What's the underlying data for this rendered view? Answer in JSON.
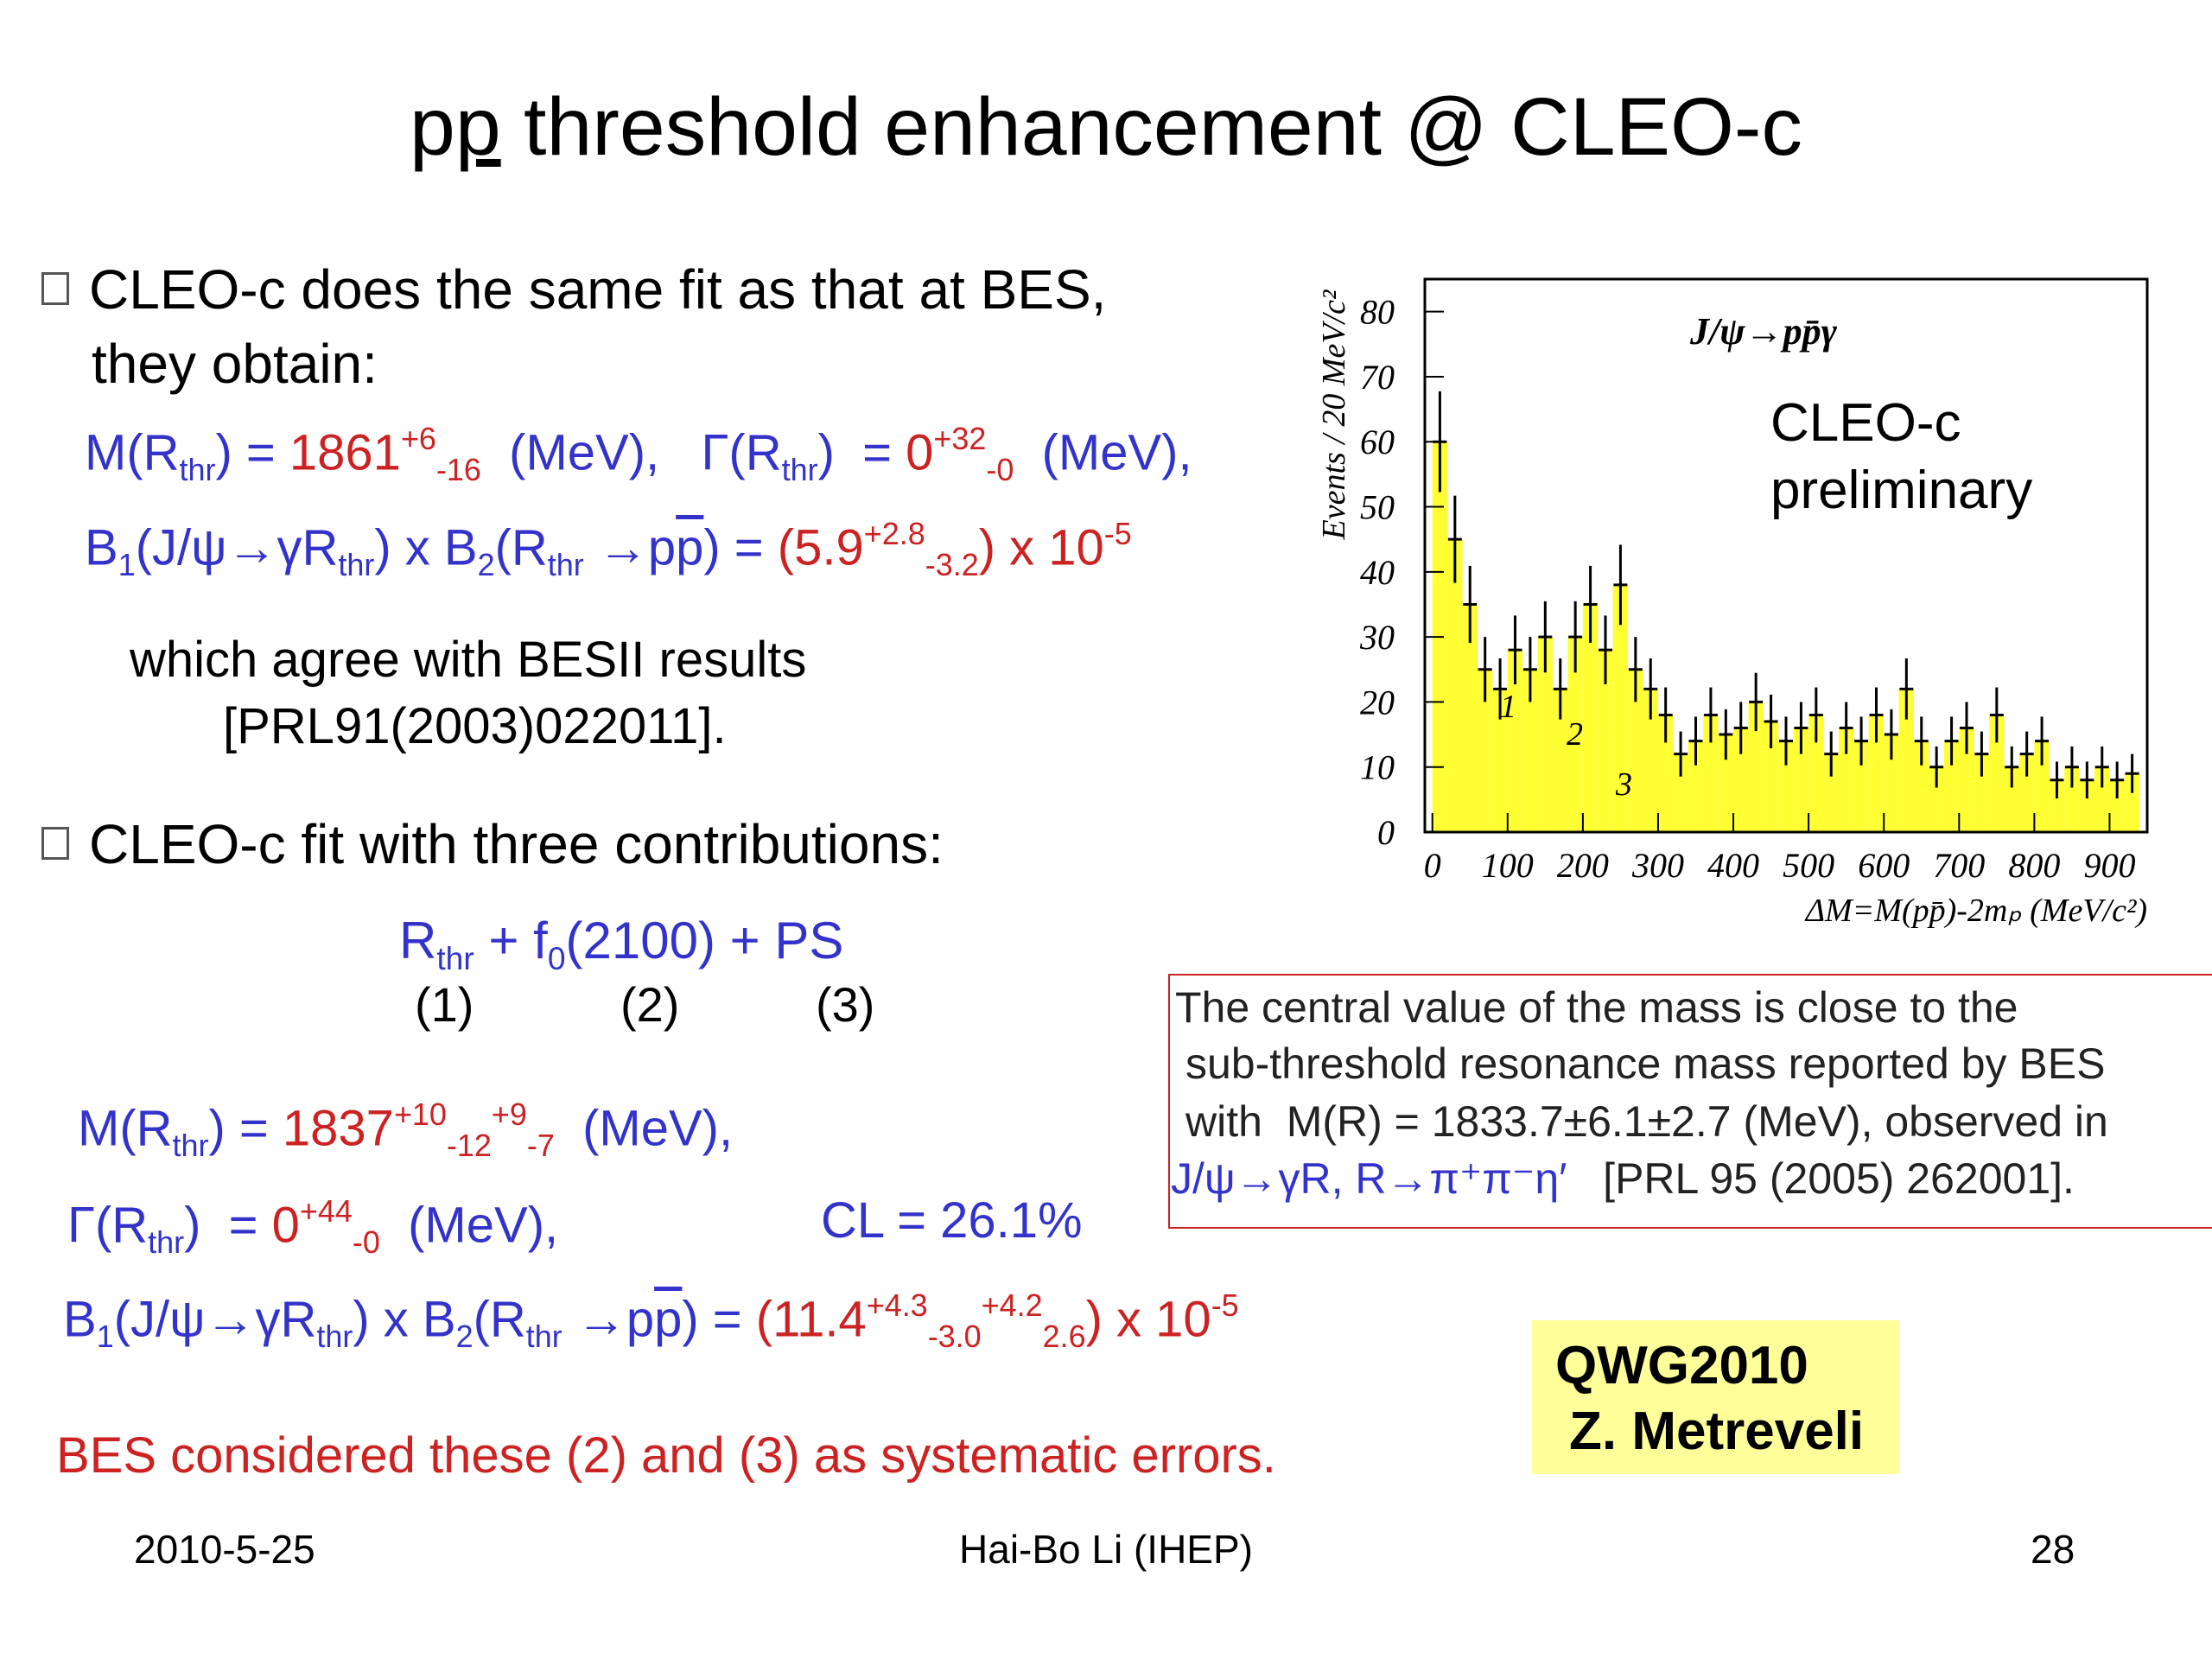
{
  "title": [
    "p",
    "p",
    " threshold enhancement @ CLEO-c"
  ],
  "bullet1": {
    "line1": "CLEO-c does the same fit as that at BES,",
    "line2": "they obtain:"
  },
  "formula1": [
    "M(R",
    "thr",
    ") = ",
    "1861",
    "+6",
    "-16",
    "  (MeV),   ",
    "Γ(R",
    "thr",
    ")  = ",
    "0",
    "+32",
    "-0",
    "  (MeV),"
  ],
  "formula2": [
    "B",
    "1",
    "(J/ψ→γR",
    "thr",
    ") x B",
    "2",
    "(R",
    "thr",
    " →p",
    "p",
    ") = ",
    "(5.9",
    "+2.8",
    "-3.2",
    ")",
    " x 10",
    "-5"
  ],
  "agree": {
    "line1": "which agree with BESII results",
    "line2": "[PRL91(2003)022011]."
  },
  "bullet2": "CLEO-c fit with three contributions:",
  "formula3": [
    "R",
    "thr",
    " + f",
    "0",
    "(2100) + PS"
  ],
  "contribution_labels": [
    "(1)",
    "(2)",
    "(3)"
  ],
  "formula4": [
    "M(R",
    "thr",
    ") = ",
    "1837",
    "+10",
    "-12",
    "+9",
    "-7",
    "  (MeV),"
  ],
  "formula5": [
    "Γ(R",
    "thr",
    ")  = ",
    "0",
    "+44",
    "-0",
    "  (MeV),"
  ],
  "cl": "CL = 26.1%",
  "formula6": [
    "B",
    "1",
    "(J/ψ→γR",
    "thr",
    ") x B",
    "2",
    "(R",
    "thr",
    " →p",
    "p",
    ") = ",
    "(11.4",
    "+4.3",
    "-3.0",
    "+4.2",
    "2.6",
    ")",
    " x 10",
    "-5"
  ],
  "conclusion": "BES considered these (2) and (3) as systematic errors.",
  "note_box": {
    "line1": "The central value of the mass is close to the",
    "line2": "sub-threshold resonance mass reported by BES",
    "line3": "with  M(R) = 1833.7±6.1±2.7 (MeV), observed in",
    "line4_blue": "J/ψ→γR, R→π⁺π⁻η′",
    "line4_black": "   [PRL 95 (2005) 262001]."
  },
  "credit": {
    "line1": "QWG2010",
    "line2": "Z. Metreveli"
  },
  "footer": {
    "date": "2010-5-25",
    "author": "Hai-Bo Li (IHEP)",
    "page": "28"
  },
  "chart_data": {
    "type": "scatter",
    "title": "J/ψ→pp̄γ",
    "notes": [
      "CLEO-c",
      "preliminary"
    ],
    "annotations": [
      "1",
      "2",
      "3"
    ],
    "x_label": "ΔM=M(pp̄)-2mₚ (MeV/c²)",
    "y_label": "Events / 20 MeV/c²",
    "x": [
      10,
      30,
      50,
      70,
      90,
      110,
      130,
      150,
      170,
      190,
      210,
      230,
      250,
      270,
      290,
      310,
      330,
      350,
      370,
      390,
      410,
      430,
      450,
      470,
      490,
      510,
      530,
      550,
      570,
      590,
      610,
      630,
      650,
      670,
      690,
      710,
      730,
      750,
      770,
      790,
      810,
      830,
      850,
      870,
      890,
      910,
      930
    ],
    "values": [
      60,
      45,
      35,
      25,
      22,
      28,
      25,
      30,
      22,
      30,
      35,
      28,
      38,
      25,
      22,
      18,
      12,
      14,
      18,
      15,
      16,
      20,
      17,
      14,
      16,
      18,
      12,
      16,
      14,
      18,
      15,
      22,
      14,
      10,
      14,
      16,
      12,
      18,
      10,
      12,
      14,
      8,
      10,
      8,
      10,
      8,
      9
    ],
    "color": "#ffff33",
    "xlim": [
      -10,
      950
    ],
    "ylim": [
      0,
      85
    ],
    "xticks": [
      0,
      100,
      200,
      300,
      400,
      500,
      600,
      700,
      800,
      900
    ],
    "yticks": [
      0,
      10,
      20,
      30,
      40,
      50,
      60,
      70,
      80
    ]
  }
}
